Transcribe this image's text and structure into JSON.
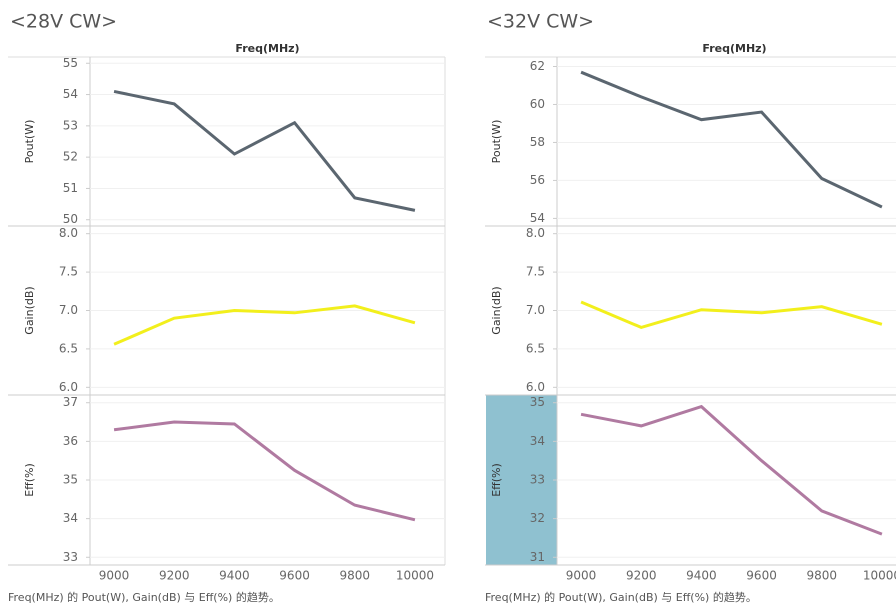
{
  "chart_data": [
    {
      "type": "line",
      "title": "<28V CW>",
      "x_label": "Freq(MHz)",
      "caption": "Freq(MHz) 的 Pout(W), Gain(dB) 与 Eff(%) 的趋势。",
      "x": [
        9000,
        9200,
        9400,
        9600,
        9800,
        10000
      ],
      "xlim": [
        8920,
        10100
      ],
      "xticks": [
        9000,
        9200,
        9400,
        9600,
        9800,
        10000
      ],
      "subplots": [
        {
          "name": "Pout(W)",
          "color": "#5b6670",
          "values": [
            54.1,
            53.7,
            52.1,
            53.1,
            50.7,
            50.3
          ],
          "ylim": [
            49.8,
            55.2
          ],
          "yticks": [
            50,
            51,
            52,
            53,
            54,
            55
          ]
        },
        {
          "name": "Gain(dB)",
          "color": "#f2ef1c",
          "values": [
            6.56,
            6.9,
            7.0,
            6.97,
            7.06,
            6.84
          ],
          "ylim": [
            5.9,
            8.1
          ],
          "yticks": [
            {
              "value": 6,
              "label": "6.0"
            },
            6.5,
            {
              "value": 7,
              "label": "7.0"
            },
            7.5,
            {
              "value": 8,
              "label": "8.0"
            }
          ]
        },
        {
          "name": "Eff(%)",
          "color": "#b07aa1",
          "values": [
            36.3,
            36.5,
            36.45,
            35.25,
            34.35,
            33.97
          ],
          "ylim": [
            32.8,
            37.2
          ],
          "yticks": [
            33,
            34,
            35,
            36,
            37
          ]
        }
      ]
    },
    {
      "type": "line",
      "title": "<32V CW>",
      "x_label": "Freq(MHz)",
      "caption": "Freq(MHz) 的 Pout(W), Gain(dB) 与 Eff(%) 的趋势。",
      "x": [
        9000,
        9200,
        9400,
        9600,
        9800,
        10000
      ],
      "xlim": [
        8920,
        10100
      ],
      "xticks": [
        9000,
        9200,
        9400,
        9600,
        9800,
        10000
      ],
      "subplots": [
        {
          "name": "Pout(W)",
          "color": "#5b6670",
          "values": [
            61.7,
            60.4,
            59.2,
            59.6,
            56.1,
            54.6
          ],
          "ylim": [
            53.6,
            62.5
          ],
          "yticks": [
            54,
            56,
            58,
            60,
            62
          ]
        },
        {
          "name": "Gain(dB)",
          "color": "#f2ef1c",
          "values": [
            7.11,
            6.78,
            7.01,
            6.97,
            7.05,
            6.82
          ],
          "ylim": [
            5.9,
            8.1
          ],
          "yticks": [
            {
              "value": 6,
              "label": "6.0"
            },
            6.5,
            {
              "value": 7,
              "label": "7.0"
            },
            7.5,
            {
              "value": 8,
              "label": "8.0"
            }
          ]
        },
        {
          "name": "Eff(%)",
          "color": "#b07aa1",
          "values": [
            34.7,
            34.4,
            34.9,
            33.5,
            32.2,
            31.6
          ],
          "ylim": [
            30.8,
            35.2
          ],
          "yticks": [
            31,
            32,
            33,
            34,
            35
          ]
        }
      ]
    }
  ]
}
